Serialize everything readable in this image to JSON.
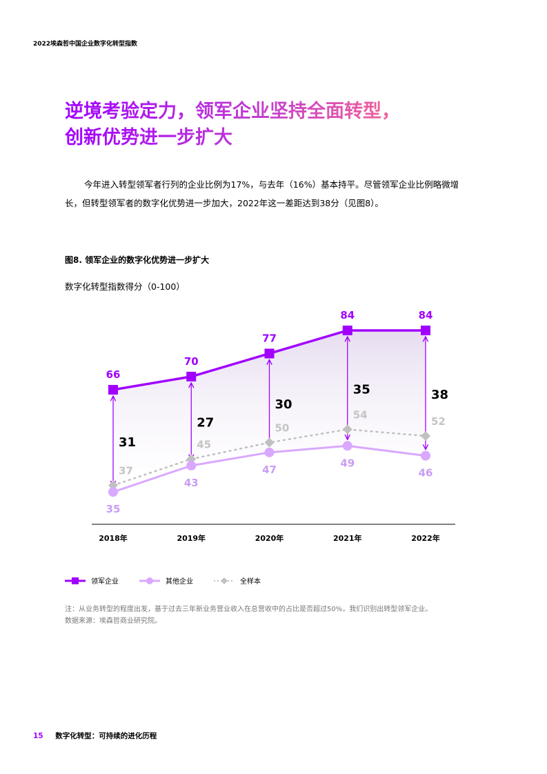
{
  "header": {
    "report_title": "2022埃森哲中国企业数字化转型指数"
  },
  "title": {
    "line1": "逆境考验定力，领军企业坚持全面转型，",
    "line2": "创新优势进一步扩大"
  },
  "paragraph": "今年进入转型领军者行列的企业比例为17%，与去年（16%）基本持平。尽管领军企业比例略微增长，但转型领军者的数字化优势进一步加大，2022年这一差距达到38分（见图8）。",
  "figure": {
    "title": "图8. 领军企业的数字化优势进一步扩大",
    "subtitle": "数字化转型指数得分（0-100）"
  },
  "chart_data": {
    "type": "line",
    "categories": [
      "2018年",
      "2019年",
      "2020年",
      "2021年",
      "2022年"
    ],
    "series": [
      {
        "name": "领军企业",
        "values": [
          66,
          70,
          77,
          84,
          84
        ],
        "color": "#a100ff",
        "marker": "square"
      },
      {
        "name": "其他企业",
        "values": [
          35,
          43,
          47,
          49,
          46
        ],
        "color": "#d9a8ff",
        "marker": "circle"
      },
      {
        "name": "全样本",
        "values": [
          37,
          45,
          50,
          54,
          52
        ],
        "color": "#c0c0c0",
        "marker": "diamond",
        "style": "dotted"
      }
    ],
    "gap_labels": [
      31,
      27,
      30,
      35,
      38
    ],
    "ylabel": "数字化转型指数得分（0-100）",
    "grid": false,
    "legend_placement": "bottom-left"
  },
  "notes": {
    "note": "注：从业务转型的程度出发，基于过去三年新业务营业收入在总营收中的占比是否超过50%，我们识别出转型领军企业。",
    "source": "数据来源：埃森哲商业研究院。"
  },
  "footer": {
    "page_number": "15",
    "section": "数字化转型：可持续的进化历程"
  }
}
